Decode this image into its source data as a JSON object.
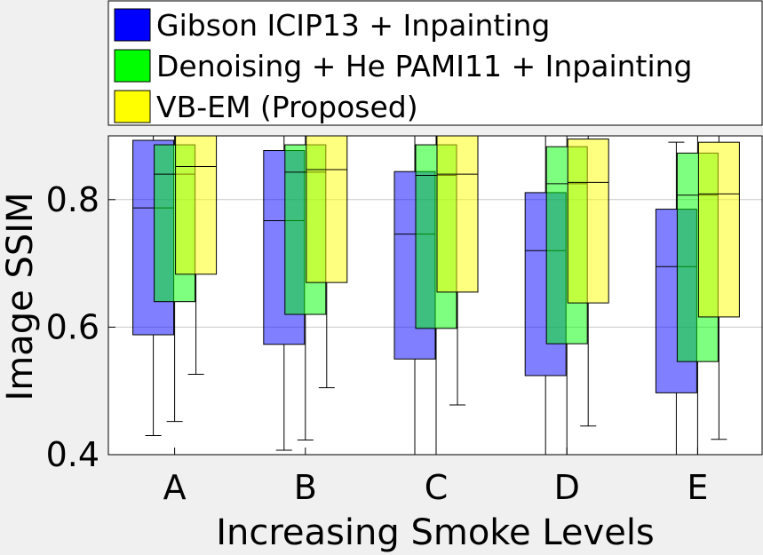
{
  "chart_data": {
    "type": "box",
    "title": "",
    "xlabel": "Increasing Smoke Levels",
    "ylabel": "Image SSIM",
    "categories": [
      "A",
      "B",
      "C",
      "D",
      "E"
    ],
    "ylim": [
      0.4,
      0.9
    ],
    "yticks": [
      0.4,
      0.6,
      0.8
    ],
    "ytick_labels": [
      "0.4",
      "0.6",
      "0.8"
    ],
    "grid": "horizontal",
    "legend_position": "top",
    "series": [
      {
        "name": "Gibson ICIP13 + Inpainting",
        "color": "#0000ff",
        "boxes": [
          {
            "q1": 0.588,
            "median": 0.787,
            "q3": 0.893,
            "whisker_low": 0.43,
            "whisker_high": 0.9
          },
          {
            "q1": 0.573,
            "median": 0.767,
            "q3": 0.877,
            "whisker_low": 0.407,
            "whisker_high": 0.9
          },
          {
            "q1": 0.55,
            "median": 0.746,
            "q3": 0.844,
            "whisker_low": 0.4,
            "whisker_high": 0.9
          },
          {
            "q1": 0.524,
            "median": 0.72,
            "q3": 0.811,
            "whisker_low": 0.4,
            "whisker_high": 0.9
          },
          {
            "q1": 0.497,
            "median": 0.695,
            "q3": 0.785,
            "whisker_low": 0.4,
            "whisker_high": 0.89
          }
        ]
      },
      {
        "name": "Denoising + He PAMI11 + Inpainting",
        "color": "#00ff00",
        "boxes": [
          {
            "q1": 0.64,
            "median": 0.84,
            "q3": 0.886,
            "whisker_low": 0.452,
            "whisker_high": 0.9
          },
          {
            "q1": 0.62,
            "median": 0.843,
            "q3": 0.886,
            "whisker_low": 0.423,
            "whisker_high": 0.9
          },
          {
            "q1": 0.598,
            "median": 0.838,
            "q3": 0.886,
            "whisker_low": 0.4,
            "whisker_high": 0.9
          },
          {
            "q1": 0.574,
            "median": 0.825,
            "q3": 0.883,
            "whisker_low": 0.4,
            "whisker_high": 0.9
          },
          {
            "q1": 0.546,
            "median": 0.807,
            "q3": 0.873,
            "whisker_low": 0.4,
            "whisker_high": 0.9
          }
        ]
      },
      {
        "name": "VB-EM (Proposed)",
        "color": "#ffff00",
        "boxes": [
          {
            "q1": 0.683,
            "median": 0.852,
            "q3": 0.9,
            "whisker_low": 0.526,
            "whisker_high": 0.9
          },
          {
            "q1": 0.67,
            "median": 0.847,
            "q3": 0.9,
            "whisker_low": 0.505,
            "whisker_high": 0.9
          },
          {
            "q1": 0.655,
            "median": 0.84,
            "q3": 0.9,
            "whisker_low": 0.478,
            "whisker_high": 0.9
          },
          {
            "q1": 0.638,
            "median": 0.827,
            "q3": 0.895,
            "whisker_low": 0.445,
            "whisker_high": 0.9
          },
          {
            "q1": 0.616,
            "median": 0.809,
            "q3": 0.89,
            "whisker_low": 0.424,
            "whisker_high": 0.9
          }
        ]
      }
    ]
  }
}
